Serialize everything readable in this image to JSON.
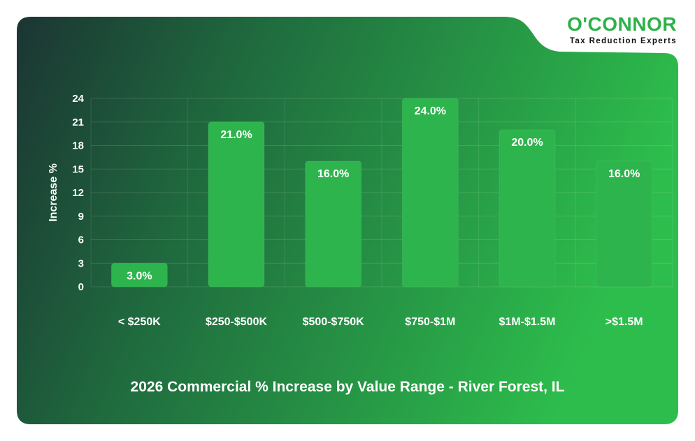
{
  "brand": {
    "name": "O'CONNOR",
    "tagline": "Tax Reduction Experts"
  },
  "colors": {
    "background_dark": "#1b3a33",
    "background_light": "#2dbd4c",
    "bar_fill": "#2db44d",
    "brand_green": "#2db24a",
    "text": "#ffffff"
  },
  "chart_data": {
    "type": "bar",
    "title": "2026 Commercial % Increase by Value Range - River Forest, IL",
    "xlabel": "",
    "ylabel": "Increase %",
    "categories": [
      "< $250K",
      "$250-$500K",
      "$500-$750K",
      "$750-$1M",
      "$1M-$1.5M",
      ">$1.5M"
    ],
    "values": [
      3.0,
      21.0,
      16.0,
      24.0,
      20.0,
      16.0
    ],
    "value_labels": [
      "3.0%",
      "21.0%",
      "16.0%",
      "24.0%",
      "20.0%",
      "16.0%"
    ],
    "ylim": [
      0,
      24
    ],
    "yticks": [
      "0",
      "3",
      "6",
      "9",
      "12",
      "15",
      "18",
      "21",
      "24"
    ],
    "grid": true,
    "legend": "none"
  }
}
